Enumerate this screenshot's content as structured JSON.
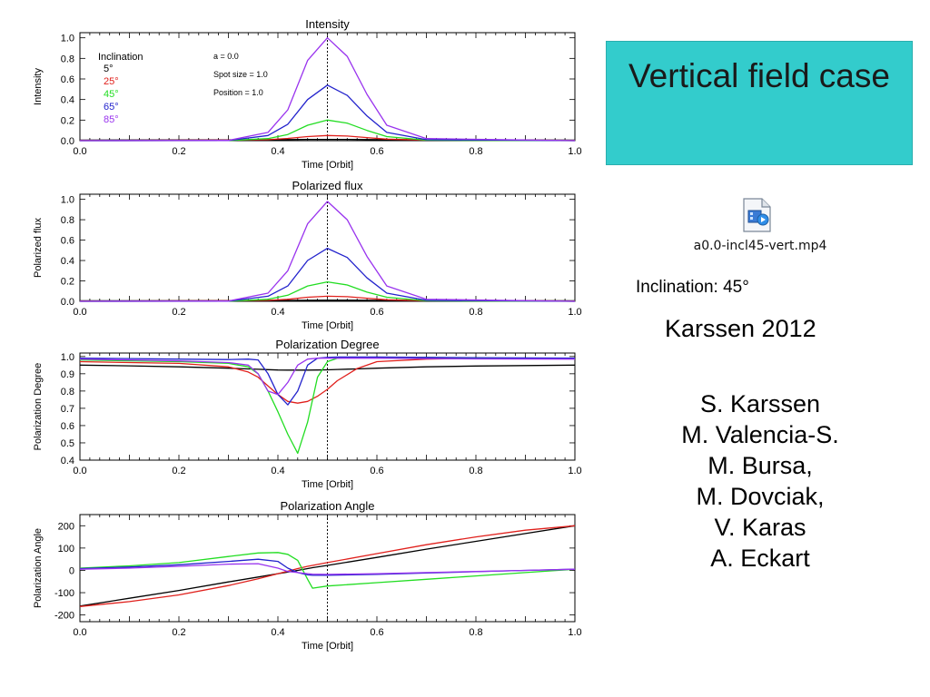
{
  "slide": {
    "title": "Vertical field case",
    "title_bg": "#33cccc",
    "media_file": "a0.0-incl45-vert.mp4",
    "media_icon": "video-file-icon",
    "inclination_note": "Inclination: 45°",
    "reference": "Karssen 2012",
    "authors": [
      "S. Karssen",
      "M. Valencia-S.",
      "M. Bursa,",
      "M. Dovciak,",
      "V. Karas",
      "A. Eckart"
    ]
  },
  "legend": {
    "title": "Inclination",
    "entries": [
      {
        "label": "5°",
        "color": "#000000"
      },
      {
        "label": "25°",
        "color": "#e0201c"
      },
      {
        "label": "45°",
        "color": "#22dd22"
      },
      {
        "label": "65°",
        "color": "#2222cc"
      },
      {
        "label": "85°",
        "color": "#9933ee"
      }
    ]
  },
  "params": [
    "a = 0.0",
    "Spot size = 1.0",
    "Position = 1.0"
  ],
  "chart_data": [
    {
      "type": "line",
      "title": "Intensity",
      "xlabel": "Time [Orbit]",
      "ylabel": "Intensity",
      "xlim": [
        0,
        1
      ],
      "ylim": [
        0,
        1.05
      ],
      "xticks": [
        0.0,
        0.2,
        0.4,
        0.6,
        0.8,
        1.0
      ],
      "xtick_labels": [
        "0.0",
        "0.2",
        "0.4",
        "0.6",
        "0.8",
        "1.0"
      ],
      "yticks": [
        0.0,
        0.2,
        0.4,
        0.6,
        0.8,
        1.0
      ],
      "ytick_labels": [
        "0.0",
        "0.2",
        "0.4",
        "0.6",
        "0.8",
        "1.0"
      ],
      "vline_x": 0.5,
      "x": [
        0,
        0.3,
        0.38,
        0.42,
        0.46,
        0.5,
        0.54,
        0.58,
        0.62,
        0.7,
        1.0
      ],
      "series": [
        {
          "name": "5°",
          "color": "#000000",
          "values": [
            0.005,
            0.008,
            0.01,
            0.011,
            0.012,
            0.012,
            0.012,
            0.011,
            0.01,
            0.008,
            0.005
          ]
        },
        {
          "name": "25°",
          "color": "#e0201c",
          "values": [
            0.003,
            0.005,
            0.01,
            0.022,
            0.04,
            0.05,
            0.045,
            0.03,
            0.015,
            0.006,
            0.003
          ]
        },
        {
          "name": "45°",
          "color": "#22dd22",
          "values": [
            0.0,
            0.002,
            0.02,
            0.06,
            0.15,
            0.2,
            0.17,
            0.1,
            0.04,
            0.005,
            0.0
          ]
        },
        {
          "name": "65°",
          "color": "#2222cc",
          "values": [
            0.0,
            0.002,
            0.05,
            0.16,
            0.4,
            0.54,
            0.44,
            0.24,
            0.08,
            0.01,
            0.0
          ]
        },
        {
          "name": "85°",
          "color": "#9933ee",
          "values": [
            0.0,
            0.003,
            0.08,
            0.3,
            0.78,
            1.0,
            0.82,
            0.45,
            0.15,
            0.02,
            0.0
          ]
        }
      ]
    },
    {
      "type": "line",
      "title": "Polarized flux",
      "xlabel": "Time [Orbit]",
      "ylabel": "Polarized flux",
      "xlim": [
        0,
        1
      ],
      "ylim": [
        0,
        1.05
      ],
      "xticks": [
        0.0,
        0.2,
        0.4,
        0.6,
        0.8,
        1.0
      ],
      "xtick_labels": [
        "0.0",
        "0.2",
        "0.4",
        "0.6",
        "0.8",
        "1.0"
      ],
      "yticks": [
        0.0,
        0.2,
        0.4,
        0.6,
        0.8,
        1.0
      ],
      "ytick_labels": [
        "0.0",
        "0.2",
        "0.4",
        "0.6",
        "0.8",
        "1.0"
      ],
      "vline_x": 0.5,
      "x": [
        0,
        0.3,
        0.38,
        0.42,
        0.46,
        0.5,
        0.54,
        0.58,
        0.62,
        0.7,
        1.0
      ],
      "series": [
        {
          "name": "5°",
          "color": "#000000",
          "values": [
            0.005,
            0.006,
            0.008,
            0.009,
            0.01,
            0.011,
            0.011,
            0.01,
            0.009,
            0.007,
            0.005
          ]
        },
        {
          "name": "25°",
          "color": "#e0201c",
          "values": [
            0.003,
            0.005,
            0.01,
            0.02,
            0.04,
            0.05,
            0.045,
            0.03,
            0.015,
            0.006,
            0.003
          ]
        },
        {
          "name": "45°",
          "color": "#22dd22",
          "values": [
            0.0,
            0.002,
            0.02,
            0.06,
            0.15,
            0.19,
            0.16,
            0.09,
            0.04,
            0.005,
            0.0
          ]
        },
        {
          "name": "65°",
          "color": "#2222cc",
          "values": [
            0.0,
            0.002,
            0.05,
            0.15,
            0.4,
            0.52,
            0.43,
            0.23,
            0.08,
            0.01,
            0.0
          ]
        },
        {
          "name": "85°",
          "color": "#9933ee",
          "values": [
            0.0,
            0.003,
            0.08,
            0.3,
            0.76,
            0.98,
            0.8,
            0.44,
            0.15,
            0.02,
            0.0
          ]
        }
      ]
    },
    {
      "type": "line",
      "title": "Polarization Degree",
      "xlabel": "Time [Orbit]",
      "ylabel": "Polarization Degree",
      "xlim": [
        0,
        1
      ],
      "ylim": [
        0.4,
        1.02
      ],
      "xticks": [
        0.0,
        0.2,
        0.4,
        0.6,
        0.8,
        1.0
      ],
      "xtick_labels": [
        "0.0",
        "0.2",
        "0.4",
        "0.6",
        "0.8",
        "1.0"
      ],
      "yticks": [
        0.4,
        0.5,
        0.6,
        0.7,
        0.8,
        0.9,
        1.0
      ],
      "ytick_labels": [
        "0.4",
        "0.5",
        "0.6",
        "0.7",
        "0.8",
        "0.9",
        "1.0"
      ],
      "vline_x": 0.5,
      "x": [
        0,
        0.1,
        0.2,
        0.3,
        0.34,
        0.36,
        0.38,
        0.4,
        0.42,
        0.44,
        0.46,
        0.48,
        0.5,
        0.52,
        0.56,
        0.6,
        0.7,
        0.8,
        1.0
      ],
      "series": [
        {
          "name": "5°",
          "color": "#000000",
          "values": [
            0.95,
            0.946,
            0.94,
            0.932,
            0.928,
            0.926,
            0.924,
            0.922,
            0.921,
            0.921,
            0.921,
            0.922,
            0.923,
            0.925,
            0.928,
            0.932,
            0.94,
            0.945,
            0.95
          ]
        },
        {
          "name": "25°",
          "color": "#e0201c",
          "values": [
            0.97,
            0.965,
            0.96,
            0.94,
            0.91,
            0.88,
            0.83,
            0.78,
            0.74,
            0.73,
            0.74,
            0.77,
            0.81,
            0.86,
            0.93,
            0.97,
            0.985,
            0.99,
            0.99
          ]
        },
        {
          "name": "45°",
          "color": "#22dd22",
          "values": [
            0.98,
            0.975,
            0.97,
            0.96,
            0.94,
            0.9,
            0.8,
            0.68,
            0.55,
            0.44,
            0.62,
            0.88,
            0.97,
            0.99,
            0.995,
            0.995,
            0.995,
            0.99,
            0.99
          ]
        },
        {
          "name": "65°",
          "color": "#2222cc",
          "values": [
            0.99,
            0.988,
            0.985,
            0.982,
            0.985,
            0.98,
            0.9,
            0.78,
            0.72,
            0.8,
            0.95,
            0.99,
            0.995,
            0.997,
            0.997,
            0.997,
            0.995,
            0.993,
            0.99
          ]
        },
        {
          "name": "85°",
          "color": "#9933ee",
          "values": [
            0.985,
            0.98,
            0.975,
            0.965,
            0.95,
            0.9,
            0.8,
            0.78,
            0.85,
            0.95,
            0.985,
            0.99,
            0.99,
            0.99,
            0.99,
            0.99,
            0.988,
            0.986,
            0.985
          ]
        }
      ]
    },
    {
      "type": "line",
      "title": "Polarization Angle",
      "xlabel": "Time [Orbit]",
      "ylabel": "Polarization Angle",
      "xlim": [
        0,
        1
      ],
      "ylim": [
        -230,
        250
      ],
      "xticks": [
        0.0,
        0.2,
        0.4,
        0.6,
        0.8,
        1.0
      ],
      "xtick_labels": [
        "0.0",
        "0.2",
        "0.4",
        "0.6",
        "0.8",
        "1.0"
      ],
      "yticks": [
        -200,
        -100,
        0,
        100,
        200
      ],
      "ytick_labels": [
        "-200",
        "-100",
        "0",
        "100",
        "200"
      ],
      "vline_x": 0.5,
      "x": [
        0,
        0.1,
        0.2,
        0.3,
        0.36,
        0.4,
        0.42,
        0.44,
        0.46,
        0.47,
        0.5,
        0.6,
        0.7,
        0.8,
        0.9,
        1.0
      ],
      "series": [
        {
          "name": "5°",
          "color": "#000000",
          "values": [
            -160,
            -125,
            -90,
            -52,
            -30,
            -15,
            -8,
            0,
            8,
            12,
            22,
            58,
            95,
            130,
            165,
            200
          ]
        },
        {
          "name": "25°",
          "color": "#e0201c",
          "values": [
            -162,
            -140,
            -110,
            -68,
            -38,
            -15,
            -4,
            8,
            18,
            22,
            35,
            75,
            115,
            150,
            180,
            200
          ]
        },
        {
          "name": "45°",
          "color": "#22dd22",
          "values": [
            10,
            20,
            35,
            62,
            78,
            80,
            72,
            45,
            -40,
            -80,
            -70,
            -55,
            -40,
            -25,
            -10,
            5
          ]
        },
        {
          "name": "65°",
          "color": "#2222cc",
          "values": [
            8,
            15,
            25,
            40,
            50,
            40,
            10,
            -10,
            -20,
            -22,
            -22,
            -18,
            -12,
            -6,
            0,
            5
          ]
        },
        {
          "name": "85°",
          "color": "#9933ee",
          "values": [
            5,
            10,
            18,
            28,
            30,
            10,
            -5,
            -10,
            -15,
            -17,
            -18,
            -15,
            -10,
            -5,
            0,
            5
          ]
        }
      ]
    }
  ]
}
